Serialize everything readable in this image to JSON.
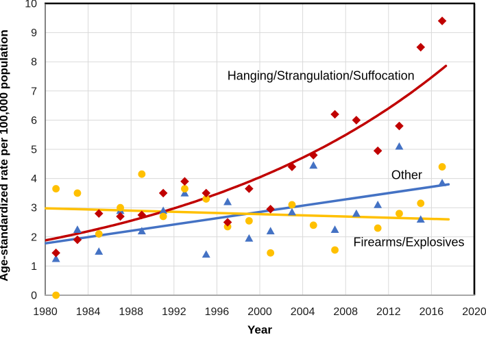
{
  "chart_data": {
    "type": "scatter",
    "title": "",
    "xlabel": "Year",
    "ylabel": "Age-standardized rate per 100,000 population",
    "xlim": [
      1980,
      2020
    ],
    "ylim": [
      0,
      10
    ],
    "x_ticks": [
      1980,
      1984,
      1988,
      1992,
      1996,
      2000,
      2004,
      2008,
      2012,
      2016,
      2020
    ],
    "y_ticks": [
      0,
      1,
      2,
      3,
      4,
      5,
      6,
      7,
      8,
      9,
      10
    ],
    "grid": true,
    "legend_position": "inline-annotations",
    "series": [
      {
        "name": "Other",
        "marker": "triangle",
        "color": "#4472C4",
        "points": [
          [
            1981,
            1.25
          ],
          [
            1983,
            2.25
          ],
          [
            1985,
            1.5
          ],
          [
            1987,
            2.9
          ],
          [
            1989,
            2.2
          ],
          [
            1991,
            2.9
          ],
          [
            1993,
            3.5
          ],
          [
            1995,
            1.4
          ],
          [
            1997,
            3.2
          ],
          [
            1999,
            1.95
          ],
          [
            2001,
            2.2
          ],
          [
            2003,
            2.85
          ],
          [
            2005,
            4.45
          ],
          [
            2007,
            2.25
          ],
          [
            2009,
            2.8
          ],
          [
            2011,
            3.1
          ],
          [
            2013,
            5.1
          ],
          [
            2015,
            2.6
          ],
          [
            2017,
            3.85
          ]
        ],
        "trend": {
          "type": "linear",
          "start": [
            1980.05,
            1.78
          ],
          "end": [
            2017.6,
            3.8
          ]
        },
        "label_pos": {
          "x": 2013.7,
          "y": 4.12
        }
      },
      {
        "name": "Firearms/Explosives",
        "marker": "circle",
        "color": "#FFC000",
        "points": [
          [
            1981,
            0.0
          ],
          [
            1981,
            3.65
          ],
          [
            1983,
            3.5
          ],
          [
            1985,
            2.1
          ],
          [
            1987,
            3.0
          ],
          [
            1989,
            4.15
          ],
          [
            1991,
            2.7
          ],
          [
            1993,
            3.65
          ],
          [
            1995,
            3.3
          ],
          [
            1997,
            2.35
          ],
          [
            1999,
            2.55
          ],
          [
            2001,
            1.45
          ],
          [
            2003,
            3.1
          ],
          [
            2005,
            2.4
          ],
          [
            2007,
            1.55
          ],
          [
            2011,
            2.3
          ],
          [
            2013,
            2.8
          ],
          [
            2015,
            3.15
          ],
          [
            2017,
            4.4
          ]
        ],
        "trend": {
          "type": "linear",
          "start": [
            1980.05,
            2.98
          ],
          "end": [
            2017.6,
            2.6
          ]
        },
        "label_pos": {
          "x": 2013.9,
          "y": 1.82
        }
      },
      {
        "name": "Hanging/Strangulation/Suffocation",
        "marker": "diamond",
        "color": "#C00000",
        "points": [
          [
            1981,
            1.45
          ],
          [
            1983,
            1.9
          ],
          [
            1985,
            2.8
          ],
          [
            1987,
            2.7
          ],
          [
            1989,
            2.75
          ],
          [
            1991,
            3.5
          ],
          [
            1993,
            3.9
          ],
          [
            1995,
            3.5
          ],
          [
            1997,
            2.5
          ],
          [
            1999,
            3.65
          ],
          [
            2001,
            2.95
          ],
          [
            2003,
            4.4
          ],
          [
            2005,
            4.8
          ],
          [
            2007,
            6.2
          ],
          [
            2009,
            6.0
          ],
          [
            2011,
            4.95
          ],
          [
            2013,
            5.8
          ],
          [
            2015,
            8.5
          ],
          [
            2017,
            9.4
          ]
        ],
        "trend": {
          "type": "exponential",
          "a": 1.88,
          "k": 0.0383,
          "t0": 1980,
          "from": 1980.1,
          "to": 2017.4
        },
        "label_pos": {
          "x": 2005.7,
          "y": 7.52
        }
      }
    ],
    "style": {
      "gridline_color": "#D9D9D9",
      "border_top_color": "#000000",
      "border_right_color": "#000000",
      "axis_left_color": "#595959",
      "axis_bottom_color": "#A6A6A6",
      "background": "#FFFFFF"
    }
  }
}
